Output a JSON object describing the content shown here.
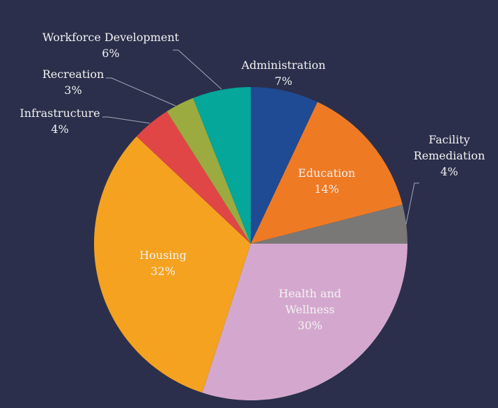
{
  "chart_data": {
    "type": "pie",
    "title": "",
    "start_angle_deg": 0,
    "direction": "clockwise",
    "slices": [
      {
        "label": "Administration",
        "value": 7,
        "pct_label": "7%",
        "color": "#1f4a94"
      },
      {
        "label": "Education",
        "value": 14,
        "pct_label": "14%",
        "color": "#ef7a24"
      },
      {
        "label": "Facility Remediation",
        "value": 4,
        "pct_label": "4%",
        "color": "#7a7877"
      },
      {
        "label": "Health and Wellness",
        "value": 30,
        "pct_label": "30%",
        "color": "#d4a8ce"
      },
      {
        "label": "Housing",
        "value": 32,
        "pct_label": "32%",
        "color": "#f4a21f"
      },
      {
        "label": "Infrastructure",
        "value": 4,
        "pct_label": "4%",
        "color": "#e04646"
      },
      {
        "label": "Recreation",
        "value": 3,
        "pct_label": "3%",
        "color": "#9bab3f"
      },
      {
        "label": "Workforce Development",
        "value": 6,
        "pct_label": "6%",
        "color": "#04a79a"
      }
    ],
    "label_color": "#f2f2f2",
    "leader_line_color": "#a6a8b8",
    "background": "#2b2f4b"
  }
}
